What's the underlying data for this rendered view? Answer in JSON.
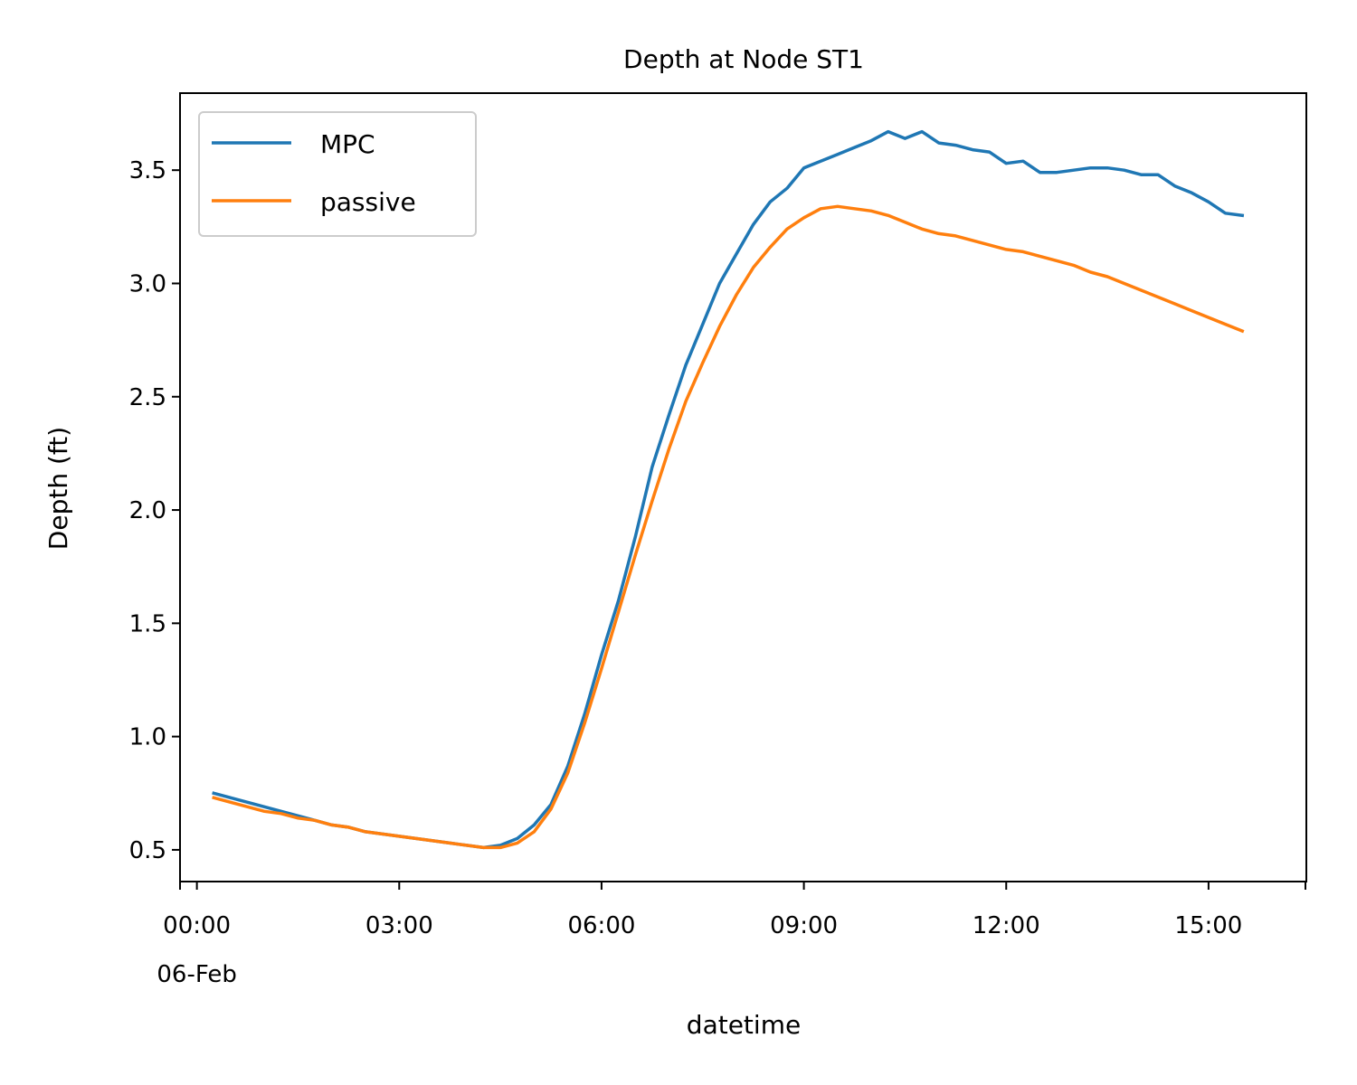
{
  "chart_data": {
    "type": "line",
    "title": "Depth at Node ST1",
    "xlabel": "datetime",
    "ylabel": "Depth (ft)",
    "x_unit": "time of day (hours), 06-Feb",
    "xlim": [
      -0.25,
      16.45
    ],
    "ylim": [
      0.36,
      3.84
    ],
    "x_ticks": [
      {
        "value": 0,
        "label": "00:00",
        "sublabel": "06-Feb"
      },
      {
        "value": 3,
        "label": "03:00"
      },
      {
        "value": 6,
        "label": "06:00"
      },
      {
        "value": 9,
        "label": "09:00"
      },
      {
        "value": 12,
        "label": "12:00"
      },
      {
        "value": 15,
        "label": "15:00"
      }
    ],
    "y_ticks": [
      "0.5",
      "1.0",
      "1.5",
      "2.0",
      "2.5",
      "3.0",
      "3.5"
    ],
    "grid": false,
    "legend": {
      "position": "upper-left"
    },
    "series": [
      {
        "name": "MPC",
        "color": "#1f77b4",
        "x": [
          0.25,
          0.5,
          0.75,
          1.0,
          1.25,
          1.5,
          1.75,
          2.0,
          2.25,
          2.5,
          2.75,
          3.0,
          3.25,
          3.5,
          3.75,
          4.0,
          4.25,
          4.5,
          4.75,
          5.0,
          5.25,
          5.5,
          5.75,
          6.0,
          6.25,
          6.5,
          6.75,
          7.0,
          7.25,
          7.5,
          7.75,
          8.0,
          8.25,
          8.5,
          8.75,
          9.0,
          9.25,
          9.5,
          9.75,
          10.0,
          10.25,
          10.5,
          10.75,
          11.0,
          11.25,
          11.5,
          11.75,
          12.0,
          12.25,
          12.5,
          12.75,
          13.0,
          13.25,
          13.5,
          13.75,
          14.0,
          14.25,
          14.5,
          14.75,
          15.0,
          15.25,
          15.5
        ],
        "y": [
          0.75,
          0.73,
          0.71,
          0.69,
          0.67,
          0.65,
          0.63,
          0.61,
          0.6,
          0.58,
          0.57,
          0.56,
          0.55,
          0.54,
          0.53,
          0.52,
          0.51,
          0.52,
          0.55,
          0.61,
          0.7,
          0.87,
          1.1,
          1.36,
          1.6,
          1.88,
          2.19,
          2.42,
          2.64,
          2.82,
          3.0,
          3.13,
          3.26,
          3.36,
          3.42,
          3.51,
          3.54,
          3.57,
          3.6,
          3.63,
          3.67,
          3.64,
          3.67,
          3.62,
          3.61,
          3.59,
          3.58,
          3.53,
          3.54,
          3.49,
          3.49,
          3.5,
          3.51,
          3.51,
          3.5,
          3.48,
          3.48,
          3.43,
          3.4,
          3.36,
          3.31,
          3.3
        ]
      },
      {
        "name": "passive",
        "color": "#ff7f0e",
        "x": [
          0.25,
          0.5,
          0.75,
          1.0,
          1.25,
          1.5,
          1.75,
          2.0,
          2.25,
          2.5,
          2.75,
          3.0,
          3.25,
          3.5,
          3.75,
          4.0,
          4.25,
          4.5,
          4.75,
          5.0,
          5.25,
          5.5,
          5.75,
          6.0,
          6.25,
          6.5,
          6.75,
          7.0,
          7.25,
          7.5,
          7.75,
          8.0,
          8.25,
          8.5,
          8.75,
          9.0,
          9.25,
          9.5,
          9.75,
          10.0,
          10.25,
          10.5,
          10.75,
          11.0,
          11.25,
          11.5,
          11.75,
          12.0,
          12.25,
          12.5,
          12.75,
          13.0,
          13.25,
          13.5,
          13.75,
          14.0,
          14.25,
          14.5,
          14.75,
          15.0,
          15.25,
          15.5
        ],
        "y": [
          0.73,
          0.71,
          0.69,
          0.67,
          0.66,
          0.64,
          0.63,
          0.61,
          0.6,
          0.58,
          0.57,
          0.56,
          0.55,
          0.54,
          0.53,
          0.52,
          0.51,
          0.51,
          0.53,
          0.58,
          0.68,
          0.84,
          1.06,
          1.3,
          1.55,
          1.8,
          2.04,
          2.27,
          2.48,
          2.65,
          2.81,
          2.95,
          3.07,
          3.16,
          3.24,
          3.29,
          3.33,
          3.34,
          3.33,
          3.32,
          3.3,
          3.27,
          3.24,
          3.22,
          3.21,
          3.19,
          3.17,
          3.15,
          3.14,
          3.12,
          3.1,
          3.08,
          3.05,
          3.03,
          3.0,
          2.97,
          2.94,
          2.91,
          2.88,
          2.85,
          2.82,
          2.79
        ]
      }
    ]
  }
}
